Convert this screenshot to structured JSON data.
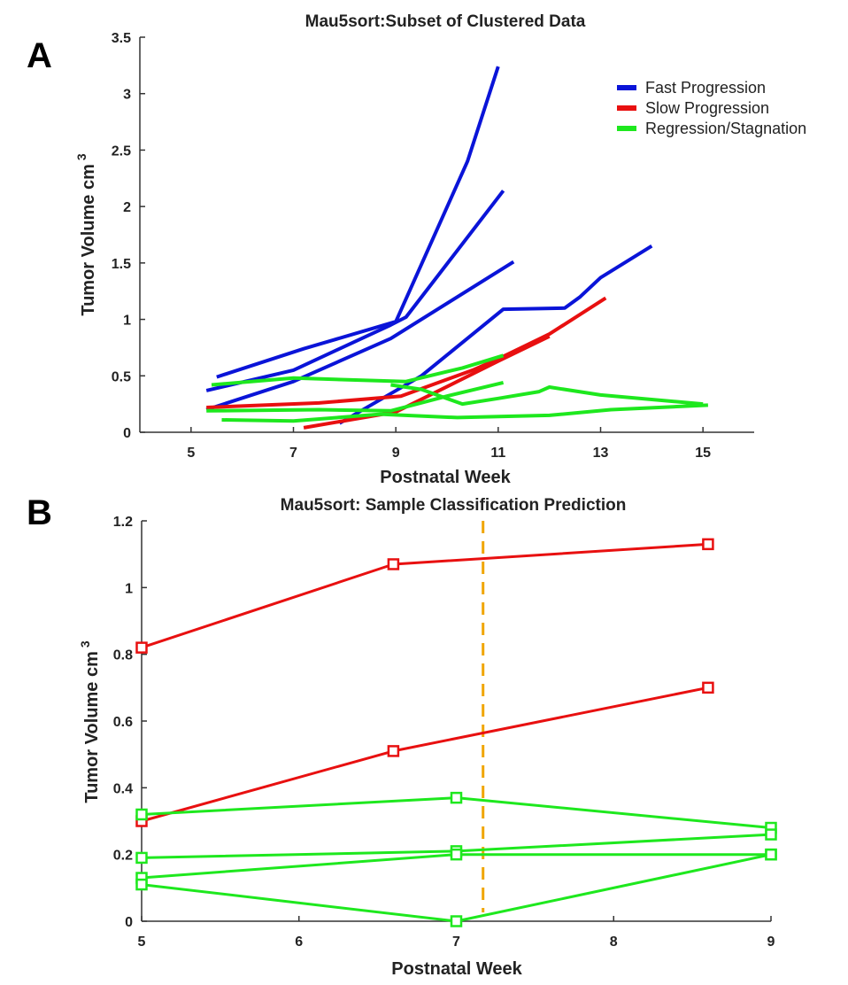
{
  "colors": {
    "fast": "#0a14d8",
    "slow": "#e81010",
    "regress": "#1ee81e",
    "cutoff": "#f0a500",
    "axis": "#333333"
  },
  "chart_data": [
    {
      "panel": "A",
      "type": "line",
      "title": "Mau5sort:Subset of Clustered Data",
      "xlabel": "Postnatal Week",
      "ylabel": "Tumor Volume cm",
      "ylabel_sup": "3",
      "xlim": [
        4,
        16
      ],
      "ylim": [
        0,
        3.5
      ],
      "xticks": [
        5,
        7,
        9,
        11,
        13,
        15
      ],
      "xtick_labels": [
        "5",
        "7",
        "9",
        "11",
        "13",
        "15"
      ],
      "yticks": [
        0,
        0.5,
        1,
        1.5,
        2,
        2.5,
        3,
        3.5
      ],
      "ytick_labels": [
        "0",
        "0.5",
        "1",
        "1.5",
        "2",
        "2.5",
        "3",
        "3.5"
      ],
      "legend_position": "top-right",
      "legend": [
        {
          "label": "Fast Progression",
          "group": "fast"
        },
        {
          "label": "Slow Progression",
          "group": "slow"
        },
        {
          "label": "Regression/Stagnation",
          "group": "regress"
        }
      ],
      "series": [
        {
          "name": "fast-1",
          "group": "fast",
          "x": [
            5.5,
            7.2,
            9.0,
            10.4,
            11.0
          ],
          "y": [
            0.49,
            0.74,
            0.98,
            2.4,
            3.24
          ]
        },
        {
          "name": "fast-2",
          "group": "fast",
          "x": [
            5.3,
            7.0,
            8.9,
            9.2,
            11.1
          ],
          "y": [
            0.37,
            0.55,
            0.95,
            1.02,
            2.14
          ]
        },
        {
          "name": "fast-3",
          "group": "fast",
          "x": [
            5.3,
            7.0,
            8.9,
            11.3
          ],
          "y": [
            0.2,
            0.45,
            0.83,
            1.51
          ]
        },
        {
          "name": "fast-4",
          "group": "fast",
          "x": [
            7.9,
            9.5,
            11.1,
            12.3,
            12.6,
            13.0,
            14.0
          ],
          "y": [
            0.08,
            0.5,
            1.09,
            1.1,
            1.2,
            1.37,
            1.65
          ]
        },
        {
          "name": "slow-1",
          "group": "slow",
          "x": [
            5.3,
            7.5,
            9.1,
            10.5,
            11.0,
            12.0,
            13.1
          ],
          "y": [
            0.22,
            0.26,
            0.32,
            0.55,
            0.65,
            0.87,
            1.19
          ]
        },
        {
          "name": "slow-2",
          "group": "slow",
          "x": [
            7.2,
            9.0,
            10.2,
            11.0,
            12.0
          ],
          "y": [
            0.04,
            0.18,
            0.45,
            0.63,
            0.85
          ]
        },
        {
          "name": "regress-1",
          "group": "regress",
          "x": [
            5.4,
            7.0,
            9.2,
            10.3,
            11.1
          ],
          "y": [
            0.42,
            0.48,
            0.45,
            0.57,
            0.68
          ]
        },
        {
          "name": "regress-2",
          "group": "regress",
          "x": [
            5.3,
            7.5,
            8.9,
            10.0,
            11.1
          ],
          "y": [
            0.19,
            0.2,
            0.19,
            0.32,
            0.44
          ]
        },
        {
          "name": "regress-3",
          "group": "regress",
          "x": [
            8.9,
            9.5,
            10.3,
            11.0,
            11.8,
            12.0,
            13.0,
            15.0
          ],
          "y": [
            0.42,
            0.38,
            0.25,
            0.3,
            0.36,
            0.4,
            0.33,
            0.25
          ]
        },
        {
          "name": "regress-4",
          "group": "regress",
          "x": [
            5.6,
            7.0,
            8.7,
            10.2,
            12.0,
            13.2,
            15.1
          ],
          "y": [
            0.11,
            0.1,
            0.16,
            0.13,
            0.15,
            0.2,
            0.24
          ]
        }
      ]
    },
    {
      "panel": "B",
      "type": "line",
      "title": "Mau5sort: Sample Classification Prediction",
      "xlabel": "Postnatal Week",
      "ylabel": "Tumor Volume cm",
      "ylabel_sup": "3",
      "xlim": [
        5,
        9
      ],
      "ylim": [
        0,
        1.2
      ],
      "xticks": [
        5,
        6,
        7,
        8,
        9
      ],
      "xtick_labels": [
        "5",
        "6",
        "7",
        "8",
        "9"
      ],
      "yticks": [
        0,
        0.2,
        0.4,
        0.6,
        0.8,
        1,
        1.2
      ],
      "ytick_labels": [
        "0",
        "0.2",
        "0.4",
        "0.6",
        "0.8",
        "1",
        "1.2"
      ],
      "cutoff_week": 7.17,
      "series": [
        {
          "name": "pred-red-1",
          "group": "slow",
          "x": [
            5.0,
            6.6,
            8.6
          ],
          "y": [
            0.82,
            1.07,
            1.13
          ],
          "markers": true
        },
        {
          "name": "pred-red-2",
          "group": "slow",
          "x": [
            5.0,
            6.6,
            8.6
          ],
          "y": [
            0.3,
            0.51,
            0.7
          ],
          "markers": true
        },
        {
          "name": "pred-green-1",
          "group": "regress",
          "x": [
            5.0,
            7.0,
            9.0
          ],
          "y": [
            0.32,
            0.37,
            0.28
          ],
          "markers": true
        },
        {
          "name": "pred-green-2",
          "group": "regress",
          "x": [
            5.0,
            7.0,
            9.0
          ],
          "y": [
            0.19,
            0.21,
            0.26
          ],
          "markers": true
        },
        {
          "name": "pred-green-3",
          "group": "regress",
          "x": [
            5.0,
            7.0,
            9.0
          ],
          "y": [
            0.13,
            0.2,
            0.2
          ],
          "markers": true
        },
        {
          "name": "pred-green-4",
          "group": "regress",
          "x": [
            5.0,
            7.0,
            9.0
          ],
          "y": [
            0.11,
            0.0,
            0.2
          ],
          "markers": true
        }
      ]
    }
  ]
}
